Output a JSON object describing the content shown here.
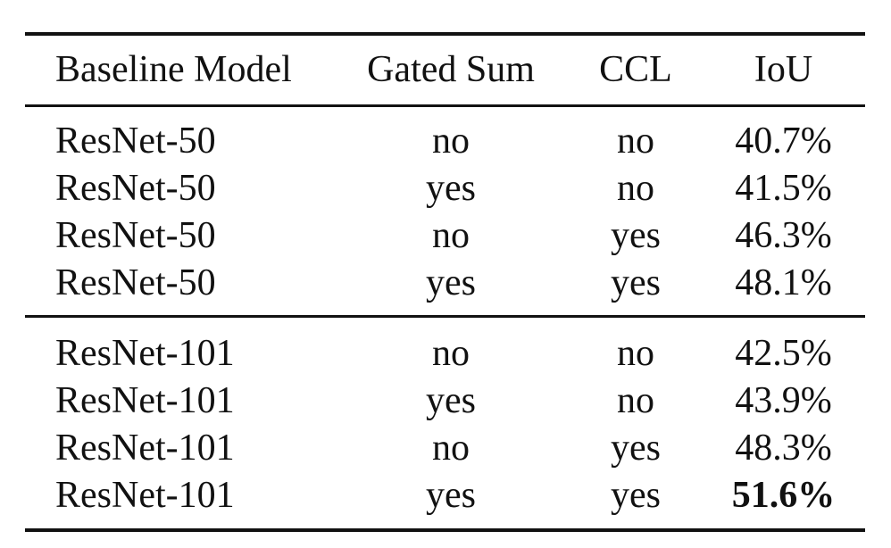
{
  "table": {
    "headers": [
      "Baseline Model",
      "Gated Sum",
      "CCL",
      "IoU"
    ],
    "groups": [
      [
        [
          "ResNet-50",
          "no",
          "no",
          "40.7%"
        ],
        [
          "ResNet-50",
          "yes",
          "no",
          "41.5%"
        ],
        [
          "ResNet-50",
          "no",
          "yes",
          "46.3%"
        ],
        [
          "ResNet-50",
          "yes",
          "yes",
          "48.1%"
        ]
      ],
      [
        [
          "ResNet-101",
          "no",
          "no",
          "42.5%"
        ],
        [
          "ResNet-101",
          "yes",
          "no",
          "43.9%"
        ],
        [
          "ResNet-101",
          "no",
          "yes",
          "48.3%"
        ],
        [
          "ResNet-101",
          "yes",
          "yes",
          "51.6%"
        ]
      ]
    ],
    "best_value": "51.6%"
  }
}
